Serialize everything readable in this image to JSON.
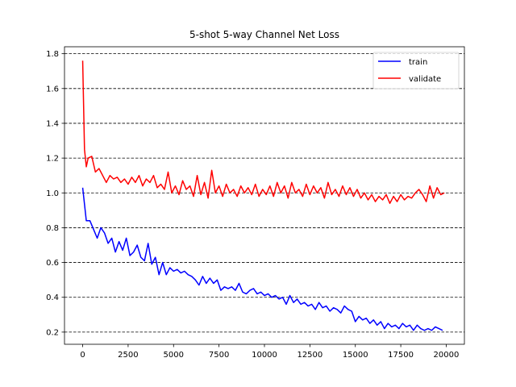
{
  "chart_data": {
    "type": "line",
    "title": "5-shot 5-way Channel Net Loss",
    "xlabel": "",
    "ylabel": "",
    "xlim": [
      -1000,
      21000
    ],
    "ylim": [
      0.13,
      1.84
    ],
    "xticks": [
      0,
      2500,
      5000,
      7500,
      10000,
      12500,
      15000,
      17500,
      20000
    ],
    "xtick_labels": [
      "0",
      "2500",
      "5000",
      "7500",
      "10000",
      "12500",
      "15000",
      "17500",
      "20000"
    ],
    "yticks": [
      0.2,
      0.4,
      0.6,
      0.8,
      1.0,
      1.2,
      1.4,
      1.6,
      1.8
    ],
    "ytick_labels": [
      "0.2",
      "0.4",
      "0.6",
      "0.8",
      "1.0",
      "1.2",
      "1.4",
      "1.6",
      "1.8"
    ],
    "grid": "horizontal dashed",
    "legend_position": "upper right",
    "series": [
      {
        "name": "train",
        "color": "#0000ff",
        "points": [
          [
            0,
            1.03
          ],
          [
            200,
            0.84
          ],
          [
            400,
            0.84
          ],
          [
            600,
            0.79
          ],
          [
            800,
            0.74
          ],
          [
            1000,
            0.8
          ],
          [
            1200,
            0.77
          ],
          [
            1400,
            0.71
          ],
          [
            1600,
            0.74
          ],
          [
            1800,
            0.66
          ],
          [
            2000,
            0.72
          ],
          [
            2200,
            0.67
          ],
          [
            2400,
            0.74
          ],
          [
            2600,
            0.64
          ],
          [
            2800,
            0.66
          ],
          [
            3000,
            0.7
          ],
          [
            3200,
            0.63
          ],
          [
            3400,
            0.61
          ],
          [
            3600,
            0.71
          ],
          [
            3800,
            0.59
          ],
          [
            4000,
            0.63
          ],
          [
            4200,
            0.53
          ],
          [
            4400,
            0.6
          ],
          [
            4600,
            0.53
          ],
          [
            4800,
            0.57
          ],
          [
            5000,
            0.55
          ],
          [
            5200,
            0.56
          ],
          [
            5400,
            0.54
          ],
          [
            5600,
            0.55
          ],
          [
            5800,
            0.53
          ],
          [
            6000,
            0.52
          ],
          [
            6200,
            0.5
          ],
          [
            6400,
            0.47
          ],
          [
            6600,
            0.52
          ],
          [
            6800,
            0.48
          ],
          [
            7000,
            0.51
          ],
          [
            7200,
            0.48
          ],
          [
            7400,
            0.5
          ],
          [
            7600,
            0.44
          ],
          [
            7800,
            0.46
          ],
          [
            8000,
            0.45
          ],
          [
            8200,
            0.46
          ],
          [
            8400,
            0.44
          ],
          [
            8600,
            0.48
          ],
          [
            8800,
            0.43
          ],
          [
            9000,
            0.42
          ],
          [
            9200,
            0.44
          ],
          [
            9400,
            0.45
          ],
          [
            9600,
            0.42
          ],
          [
            9800,
            0.43
          ],
          [
            10000,
            0.41
          ],
          [
            10200,
            0.42
          ],
          [
            10400,
            0.4
          ],
          [
            10600,
            0.41
          ],
          [
            10800,
            0.39
          ],
          [
            11000,
            0.4
          ],
          [
            11200,
            0.36
          ],
          [
            11400,
            0.41
          ],
          [
            11600,
            0.37
          ],
          [
            11800,
            0.39
          ],
          [
            12000,
            0.36
          ],
          [
            12200,
            0.37
          ],
          [
            12400,
            0.35
          ],
          [
            12600,
            0.36
          ],
          [
            12800,
            0.33
          ],
          [
            13000,
            0.37
          ],
          [
            13200,
            0.34
          ],
          [
            13400,
            0.35
          ],
          [
            13600,
            0.32
          ],
          [
            13800,
            0.34
          ],
          [
            14000,
            0.33
          ],
          [
            14200,
            0.31
          ],
          [
            14400,
            0.35
          ],
          [
            14600,
            0.33
          ],
          [
            14800,
            0.32
          ],
          [
            15000,
            0.26
          ],
          [
            15200,
            0.29
          ],
          [
            15400,
            0.27
          ],
          [
            15600,
            0.28
          ],
          [
            15800,
            0.25
          ],
          [
            16000,
            0.27
          ],
          [
            16200,
            0.24
          ],
          [
            16400,
            0.26
          ],
          [
            16600,
            0.22
          ],
          [
            16800,
            0.25
          ],
          [
            17000,
            0.23
          ],
          [
            17200,
            0.24
          ],
          [
            17400,
            0.22
          ],
          [
            17600,
            0.25
          ],
          [
            17800,
            0.23
          ],
          [
            18000,
            0.24
          ],
          [
            18200,
            0.21
          ],
          [
            18400,
            0.24
          ],
          [
            18600,
            0.22
          ],
          [
            18800,
            0.21
          ],
          [
            19000,
            0.22
          ],
          [
            19200,
            0.21
          ],
          [
            19400,
            0.23
          ],
          [
            19600,
            0.22
          ],
          [
            19800,
            0.21
          ]
        ]
      },
      {
        "name": "validate",
        "color": "#ff0000",
        "points": [
          [
            0,
            1.76
          ],
          [
            100,
            1.25
          ],
          [
            200,
            1.15
          ],
          [
            300,
            1.2
          ],
          [
            500,
            1.21
          ],
          [
            700,
            1.12
          ],
          [
            900,
            1.14
          ],
          [
            1100,
            1.1
          ],
          [
            1300,
            1.06
          ],
          [
            1500,
            1.1
          ],
          [
            1700,
            1.08
          ],
          [
            1900,
            1.09
          ],
          [
            2100,
            1.06
          ],
          [
            2300,
            1.08
          ],
          [
            2500,
            1.05
          ],
          [
            2700,
            1.09
          ],
          [
            2900,
            1.06
          ],
          [
            3100,
            1.1
          ],
          [
            3300,
            1.04
          ],
          [
            3500,
            1.08
          ],
          [
            3700,
            1.06
          ],
          [
            3900,
            1.1
          ],
          [
            4100,
            1.03
          ],
          [
            4300,
            1.05
          ],
          [
            4500,
            1.02
          ],
          [
            4700,
            1.12
          ],
          [
            4900,
            1.0
          ],
          [
            5100,
            1.04
          ],
          [
            5300,
            0.99
          ],
          [
            5500,
            1.07
          ],
          [
            5700,
            1.02
          ],
          [
            5900,
            1.04
          ],
          [
            6100,
            0.98
          ],
          [
            6300,
            1.1
          ],
          [
            6500,
            0.99
          ],
          [
            6700,
            1.06
          ],
          [
            6900,
            0.97
          ],
          [
            7100,
            1.13
          ],
          [
            7300,
            1.0
          ],
          [
            7500,
            1.04
          ],
          [
            7700,
            0.98
          ],
          [
            7900,
            1.05
          ],
          [
            8100,
            1.0
          ],
          [
            8300,
            1.02
          ],
          [
            8500,
            0.98
          ],
          [
            8700,
            1.04
          ],
          [
            8900,
            1.0
          ],
          [
            9100,
            1.03
          ],
          [
            9300,
            0.99
          ],
          [
            9500,
            1.05
          ],
          [
            9700,
            0.98
          ],
          [
            9900,
            1.02
          ],
          [
            10100,
            0.99
          ],
          [
            10300,
            1.04
          ],
          [
            10500,
            0.98
          ],
          [
            10700,
            1.06
          ],
          [
            10900,
            1.0
          ],
          [
            11100,
            1.04
          ],
          [
            11300,
            0.97
          ],
          [
            11500,
            1.06
          ],
          [
            11700,
            1.0
          ],
          [
            11900,
            1.02
          ],
          [
            12100,
            0.98
          ],
          [
            12300,
            1.05
          ],
          [
            12500,
            0.99
          ],
          [
            12700,
            1.04
          ],
          [
            12900,
            1.0
          ],
          [
            13100,
            1.03
          ],
          [
            13300,
            0.97
          ],
          [
            13500,
            1.06
          ],
          [
            13700,
            0.99
          ],
          [
            13900,
            1.02
          ],
          [
            14100,
            0.98
          ],
          [
            14300,
            1.04
          ],
          [
            14500,
            0.99
          ],
          [
            14700,
            1.03
          ],
          [
            14900,
            0.98
          ],
          [
            15100,
            1.02
          ],
          [
            15300,
            0.97
          ],
          [
            15500,
            1.0
          ],
          [
            15700,
            0.96
          ],
          [
            15900,
            0.99
          ],
          [
            16100,
            0.95
          ],
          [
            16300,
            0.98
          ],
          [
            16500,
            0.96
          ],
          [
            16700,
            0.99
          ],
          [
            16900,
            0.94
          ],
          [
            17100,
            0.98
          ],
          [
            17300,
            0.95
          ],
          [
            17500,
            0.99
          ],
          [
            17700,
            0.96
          ],
          [
            17900,
            0.98
          ],
          [
            18100,
            0.97
          ],
          [
            18300,
            1.0
          ],
          [
            18500,
            1.02
          ],
          [
            18700,
            0.99
          ],
          [
            18900,
            0.95
          ],
          [
            19100,
            1.04
          ],
          [
            19300,
            0.97
          ],
          [
            19500,
            1.03
          ],
          [
            19700,
            0.99
          ],
          [
            19900,
            1.0
          ]
        ]
      }
    ]
  }
}
